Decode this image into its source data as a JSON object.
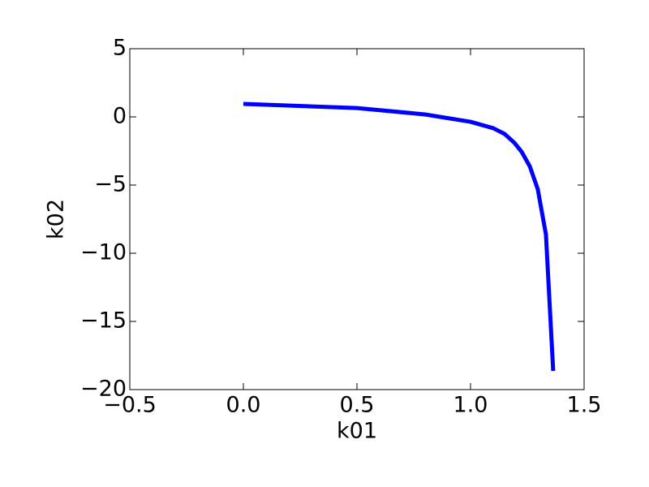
{
  "chart_data": {
    "type": "line",
    "x_label": "k01",
    "y_label": "k02",
    "x": [
      0.0,
      0.5,
      0.8,
      1.0,
      1.1,
      1.15,
      1.193,
      1.225,
      1.261,
      1.296,
      1.332,
      1.364
    ],
    "values": [
      0.95,
      0.65,
      0.18,
      -0.36,
      -0.83,
      -1.25,
      -1.9,
      -2.56,
      -3.63,
      -5.3,
      -8.63,
      -18.63
    ],
    "color": "#0000ff",
    "xlim": [
      -0.5,
      1.5
    ],
    "xticks": [
      {
        "value": -0.5,
        "label": "−0.5"
      },
      {
        "value": 0,
        "label": "0.0"
      },
      {
        "value": 0.5,
        "label": "0.5"
      },
      {
        "value": 1,
        "label": "1.0"
      },
      {
        "value": 1.5,
        "label": "1.5"
      }
    ],
    "ylim": [
      -20,
      5
    ],
    "yticks": [
      {
        "value": -20,
        "label": "−20"
      },
      {
        "value": -15,
        "label": "−15"
      },
      {
        "value": -10,
        "label": "−10"
      },
      {
        "value": -5,
        "label": "−5"
      },
      0,
      5
    ],
    "grid": false
  }
}
